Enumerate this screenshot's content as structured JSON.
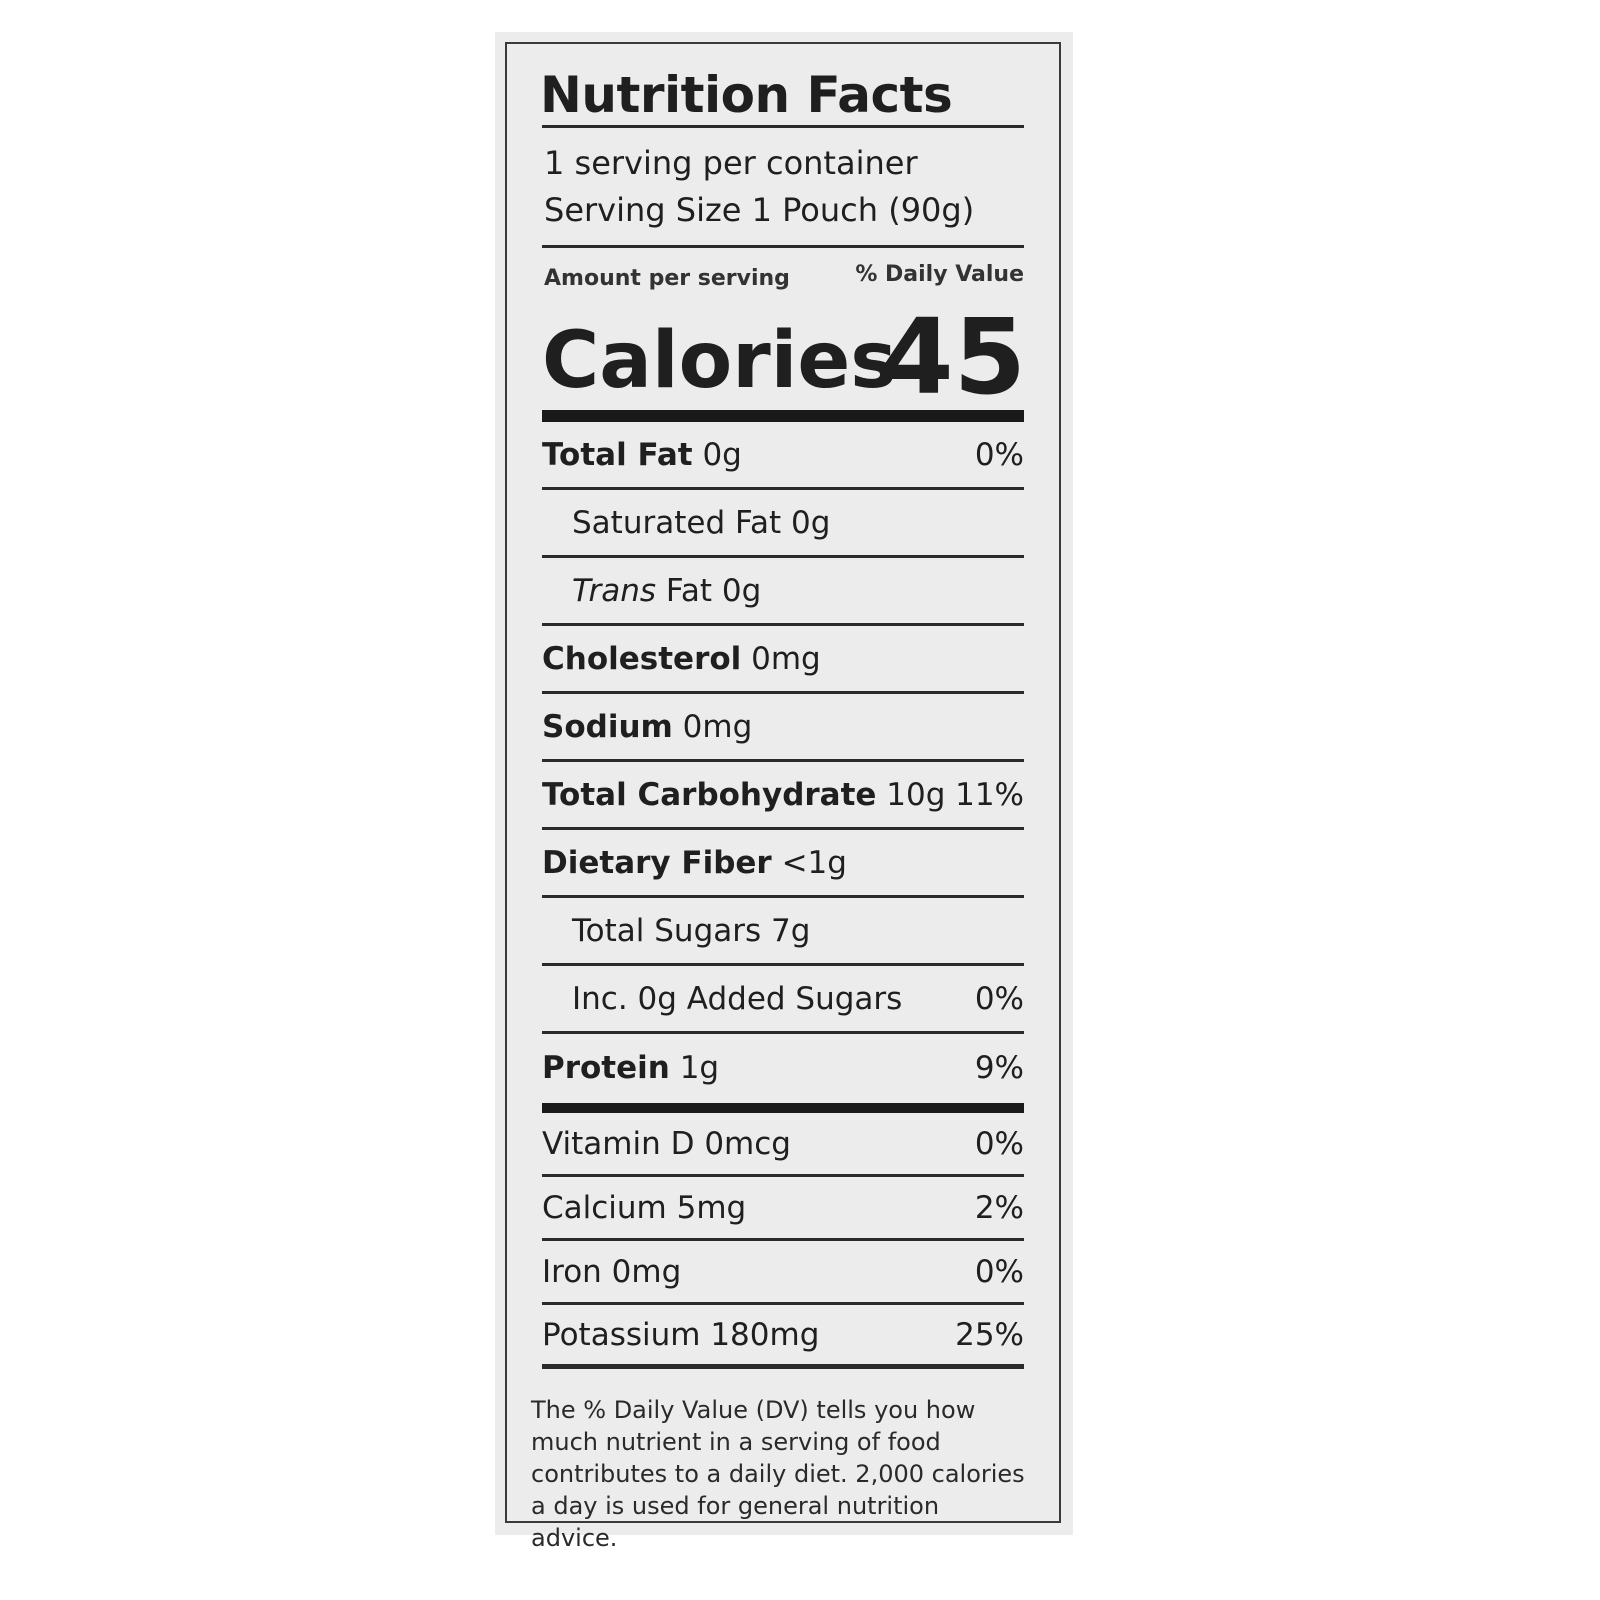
{
  "title": "Nutrition Facts",
  "servings_per_container": "1 serving per container",
  "serving_size_label": "Serving Size",
  "serving_size_value": "1 Pouch (90g)",
  "amount_per_serving": "Amount per serving",
  "daily_value_header": "% Daily Value",
  "calories_label": "Calories",
  "calories_value": "45",
  "nutrients": [
    {
      "name": "Total Fat",
      "amount": "0g",
      "dv": "0%",
      "bold": true,
      "indent": false
    },
    {
      "name": "Saturated Fat",
      "amount": "0g",
      "dv": "",
      "bold": false,
      "indent": true
    },
    {
      "name": "Trans",
      "suffix": "Fat",
      "amount": "0g",
      "dv": "",
      "bold": false,
      "indent": true,
      "italic": true
    },
    {
      "name": "Cholesterol",
      "amount": "0mg",
      "dv": "",
      "bold": true,
      "indent": false
    },
    {
      "name": "Sodium",
      "amount": "0mg",
      "dv": "",
      "bold": true,
      "indent": false
    },
    {
      "name": "Total Carbohydrate",
      "amount": "10g",
      "dv": "11%",
      "bold": true,
      "indent": false
    },
    {
      "name": "Dietary Fiber",
      "amount": "<1g",
      "dv": "",
      "bold": true,
      "indent": false
    },
    {
      "name": "Total Sugars",
      "amount": "7g",
      "dv": "",
      "bold": false,
      "indent": true
    },
    {
      "name": "Inc. 0g Added Sugars",
      "amount": "",
      "dv": "0%",
      "bold": false,
      "indent": true
    },
    {
      "name": "Protein",
      "amount": "1g",
      "dv": "9%",
      "bold": true,
      "indent": false
    }
  ],
  "vitamins": [
    {
      "name": "Vitamin D",
      "amount": "0mcg",
      "dv": "0%"
    },
    {
      "name": "Calcium",
      "amount": "5mg",
      "dv": "2%"
    },
    {
      "name": "Iron",
      "amount": "0mg",
      "dv": "0%"
    },
    {
      "name": "Potassium",
      "amount": "180mg",
      "dv": "25%"
    }
  ],
  "footnote": "The % Daily Value (DV) tells you how much nutrient in a serving of food contributes to a daily diet. 2,000 calories a day is used for general nutrition advice."
}
